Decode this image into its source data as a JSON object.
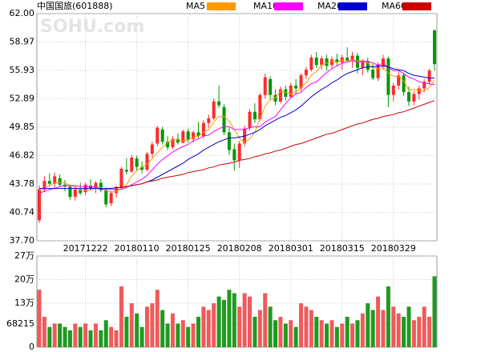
{
  "chart_data": [
    {
      "type": "candlestick",
      "title": "中国国旅(601888)",
      "watermark": "SOHU.com",
      "categories": [
        null,
        null,
        null,
        null,
        null,
        null,
        null,
        null,
        null,
        "20171222",
        null,
        null,
        null,
        null,
        null,
        null,
        null,
        null,
        null,
        "20180110",
        null,
        null,
        null,
        null,
        null,
        null,
        null,
        null,
        null,
        "20180125",
        null,
        null,
        null,
        null,
        null,
        null,
        null,
        null,
        null,
        "20180208",
        null,
        null,
        null,
        null,
        null,
        null,
        null,
        null,
        null,
        "20180301",
        null,
        null,
        null,
        null,
        null,
        null,
        null,
        null,
        null,
        "20180315",
        null,
        null,
        null,
        null,
        null,
        null,
        null,
        null,
        null,
        "20180329",
        null,
        null,
        null,
        null,
        null,
        null,
        null,
        null
      ],
      "open": [
        39.9,
        43.2,
        44.1,
        43.8,
        44.4,
        43.7,
        43.5,
        42.4,
        43.2,
        42.9,
        43.6,
        43.3,
        43.9,
        43.1,
        41.7,
        42.8,
        43.4,
        45.3,
        45.1,
        46.5,
        45.6,
        45.3,
        47.0,
        48.1,
        49.6,
        48.3,
        47.7,
        48.6,
        48.2,
        49.4,
        48.6,
        49.3,
        48.9,
        50.3,
        50.8,
        52.6,
        52.0,
        49.3,
        47.5,
        46.3,
        48.1,
        49.8,
        51.5,
        50.7,
        53.3,
        55.0,
        53.3,
        52.6,
        53.9,
        53.1,
        54.3,
        54.0,
        55.4,
        56.0,
        57.3,
        56.5,
        57.2,
        56.5,
        57.1,
        56.8,
        57.3,
        57.0,
        57.5,
        56.2,
        56.9,
        56.0,
        55.1,
        56.4,
        57.2,
        53.3,
        54.3,
        55.4,
        53.6,
        52.6,
        53.4,
        54.0,
        54.7,
        60.2
      ],
      "high": [
        43.6,
        44.6,
        44.9,
        45.0,
        44.8,
        44.2,
        43.7,
        43.5,
        43.9,
        43.9,
        44.3,
        44.1,
        44.3,
        43.4,
        43.0,
        43.6,
        45.6,
        46.5,
        46.9,
        46.8,
        46.2,
        47.2,
        48.3,
        50.0,
        49.9,
        48.9,
        48.9,
        49.2,
        49.6,
        49.7,
        49.5,
        50.4,
        50.6,
        51.2,
        52.9,
        54.3,
        52.3,
        49.8,
        48.1,
        48.4,
        50.0,
        51.8,
        52.4,
        53.5,
        55.6,
        55.3,
        53.9,
        54.2,
        54.3,
        54.6,
        55.0,
        55.6,
        56.3,
        57.6,
        57.9,
        57.5,
        57.6,
        57.4,
        57.7,
        57.6,
        58.4,
        57.9,
        57.8,
        57.1,
        57.3,
        56.6,
        56.8,
        57.6,
        57.4,
        54.6,
        55.8,
        55.6,
        54.2,
        53.7,
        54.3,
        55.0,
        56.1,
        60.3
      ],
      "low": [
        39.6,
        42.9,
        43.5,
        43.3,
        43.5,
        43.0,
        42.1,
        42.0,
        42.6,
        42.6,
        43.1,
        42.8,
        42.9,
        41.3,
        41.4,
        42.3,
        43.2,
        44.8,
        45.0,
        45.2,
        44.9,
        45.1,
        46.6,
        47.8,
        48.0,
        47.4,
        47.5,
        48.0,
        48.1,
        48.2,
        48.2,
        48.7,
        48.6,
        49.8,
        50.6,
        51.9,
        49.0,
        46.9,
        45.2,
        45.5,
        47.8,
        49.5,
        50.3,
        50.5,
        52.9,
        52.8,
        52.2,
        52.4,
        52.7,
        52.9,
        53.4,
        53.7,
        55.0,
        55.8,
        56.2,
        56.0,
        55.9,
        56.1,
        56.4,
        56.0,
        56.9,
        56.2,
        55.6,
        55.4,
        55.7,
        54.9,
        54.8,
        56.0,
        52.0,
        52.6,
        53.9,
        53.2,
        52.1,
        52.2,
        52.8,
        53.6,
        54.4,
        55.9
      ],
      "close": [
        43.2,
        44.1,
        43.8,
        44.6,
        43.7,
        43.5,
        42.4,
        43.2,
        42.8,
        43.7,
        43.3,
        43.9,
        43.1,
        41.6,
        42.8,
        43.4,
        45.4,
        45.1,
        46.6,
        45.6,
        45.3,
        47.0,
        48.0,
        49.8,
        48.3,
        47.7,
        48.6,
        48.2,
        49.4,
        48.5,
        49.3,
        48.9,
        50.3,
        50.8,
        52.6,
        52.2,
        49.3,
        47.4,
        46.3,
        48.1,
        49.7,
        51.5,
        50.7,
        53.3,
        55.2,
        53.3,
        52.6,
        53.9,
        53.1,
        54.3,
        54.0,
        55.4,
        56.0,
        57.3,
        56.5,
        57.2,
        56.4,
        57.1,
        56.8,
        57.3,
        57.0,
        57.5,
        56.2,
        56.9,
        56.0,
        55.1,
        56.5,
        57.2,
        53.3,
        54.3,
        55.4,
        53.6,
        52.6,
        53.4,
        54.0,
        54.7,
        55.9,
        56.6
      ],
      "up_color": "#ff2a2a",
      "down_color": "#009900",
      "series": [
        {
          "name": "MA5",
          "color": "#ff9900",
          "values": [
            43.0,
            43.3,
            43.6,
            43.9,
            43.9,
            43.9,
            43.6,
            43.5,
            43.1,
            43.1,
            43.1,
            43.4,
            43.4,
            43.1,
            42.9,
            43.0,
            43.3,
            43.7,
            44.6,
            45.2,
            45.6,
            45.9,
            46.5,
            47.1,
            47.7,
            48.2,
            48.5,
            48.5,
            48.4,
            48.5,
            48.8,
            48.9,
            49.3,
            49.6,
            50.4,
            51.0,
            51.0,
            50.5,
            49.6,
            48.7,
            48.2,
            48.6,
            49.3,
            50.7,
            52.1,
            52.8,
            53.0,
            53.7,
            53.6,
            53.4,
            53.6,
            54.1,
            54.6,
            55.4,
            55.8,
            56.5,
            56.7,
            56.9,
            56.8,
            57.0,
            56.9,
            57.1,
            56.9,
            57.0,
            56.7,
            56.3,
            56.1,
            56.3,
            55.6,
            55.3,
            55.3,
            54.8,
            53.8,
            53.9,
            53.8,
            53.7,
            54.1,
            54.9
          ]
        },
        {
          "name": "MA10",
          "color": "#ff00ff",
          "values": [
            42.8,
            43.0,
            43.2,
            43.3,
            43.5,
            43.6,
            43.6,
            43.6,
            43.5,
            43.5,
            43.5,
            43.4,
            43.2,
            43.2,
            43.2,
            43.2,
            43.2,
            43.4,
            43.7,
            44.0,
            44.3,
            44.7,
            45.3,
            45.9,
            46.4,
            46.8,
            47.2,
            47.5,
            47.8,
            48.0,
            48.4,
            48.6,
            48.9,
            49.0,
            49.4,
            49.7,
            49.9,
            49.9,
            49.6,
            49.6,
            49.6,
            49.8,
            49.9,
            49.9,
            50.4,
            50.7,
            51.0,
            51.7,
            52.4,
            53.0,
            53.4,
            53.6,
            54.1,
            54.5,
            54.7,
            55.2,
            55.7,
            56.1,
            56.4,
            56.7,
            56.8,
            57.0,
            56.8,
            56.9,
            56.9,
            56.7,
            56.5,
            56.7,
            56.2,
            55.9,
            55.9,
            55.6,
            55.2,
            55.0,
            54.7,
            54.6,
            54.5,
            54.4
          ]
        },
        {
          "name": "MA20",
          "color": "#0000cc",
          "values": [
            43.3,
            43.3,
            43.3,
            43.3,
            43.3,
            43.3,
            43.3,
            43.3,
            43.3,
            43.3,
            43.3,
            43.3,
            43.3,
            43.3,
            43.3,
            43.4,
            43.4,
            43.5,
            43.6,
            43.7,
            43.8,
            44.0,
            44.2,
            44.5,
            44.8,
            45.1,
            45.4,
            45.7,
            46.0,
            46.4,
            46.7,
            47.0,
            47.4,
            47.7,
            48.0,
            48.3,
            48.5,
            48.7,
            48.7,
            48.8,
            48.9,
            49.1,
            49.3,
            49.6,
            50.0,
            50.3,
            50.6,
            50.9,
            51.1,
            51.4,
            51.7,
            52.1,
            52.6,
            53.1,
            53.5,
            53.9,
            54.2,
            54.6,
            54.9,
            55.3,
            55.6,
            55.8,
            56.0,
            56.2,
            56.3,
            56.3,
            56.4,
            56.4,
            56.3,
            56.1,
            56.0,
            55.9,
            55.6,
            55.4,
            55.3,
            55.2,
            55.1,
            55.1
          ]
        },
        {
          "name": "MA60",
          "color": "#cc0000",
          "values": [
            null,
            null,
            null,
            null,
            null,
            null,
            null,
            null,
            null,
            null,
            null,
            null,
            null,
            null,
            null,
            null,
            43.4,
            43.5,
            43.6,
            43.7,
            43.8,
            44.0,
            44.1,
            44.2,
            44.4,
            44.5,
            44.6,
            44.7,
            44.8,
            45.0,
            45.1,
            45.2,
            45.3,
            45.5,
            45.6,
            45.8,
            45.9,
            46.0,
            46.1,
            46.3,
            46.4,
            46.5,
            46.7,
            46.8,
            47.0,
            47.1,
            47.3,
            47.4,
            47.6,
            47.8,
            48.0,
            48.1,
            48.3,
            48.5,
            48.7,
            48.9,
            49.1,
            49.2,
            49.4,
            49.6,
            49.8,
            50.0,
            50.2,
            50.3,
            50.5,
            50.7,
            50.8,
            51.0,
            51.1,
            51.2,
            51.4,
            51.5,
            51.7,
            51.9,
            52.1,
            52.3,
            52.5,
            52.7
          ]
        }
      ],
      "ylim": [
        37.7,
        62
      ],
      "yticks": [
        {
          "value": 37.7,
          "label": "37.70"
        },
        40.74,
        43.78,
        46.82,
        49.85,
        52.89,
        55.93,
        58.97,
        {
          "value": 62,
          "label": "62.00"
        }
      ],
      "grid": true
    },
    {
      "type": "bar",
      "values": [
        170000,
        90000,
        60000,
        70000,
        70000,
        60000,
        50000,
        70000,
        60000,
        70000,
        50000,
        70000,
        50000,
        80000,
        60000,
        50000,
        180000,
        90000,
        130000,
        100000,
        60000,
        120000,
        130000,
        170000,
        110000,
        70000,
        100000,
        70000,
        80000,
        60000,
        70000,
        90000,
        120000,
        110000,
        130000,
        150000,
        140000,
        170000,
        160000,
        120000,
        160000,
        150000,
        90000,
        110000,
        160000,
        120000,
        80000,
        90000,
        70000,
        80000,
        60000,
        130000,
        120000,
        110000,
        90000,
        80000,
        70000,
        80000,
        60000,
        70000,
        90000,
        70000,
        80000,
        100000,
        130000,
        110000,
        150000,
        110000,
        180000,
        120000,
        100000,
        90000,
        120000,
        80000,
        90000,
        120000,
        90000,
        210000
      ],
      "ylim": [
        0,
        270000
      ],
      "yticks": [
        0,
        68215,
        {
          "value": 130000,
          "label": "13万"
        },
        {
          "value": 200000,
          "label": "20万"
        },
        {
          "value": 270000,
          "label": "27万"
        }
      ],
      "grid": true
    }
  ]
}
